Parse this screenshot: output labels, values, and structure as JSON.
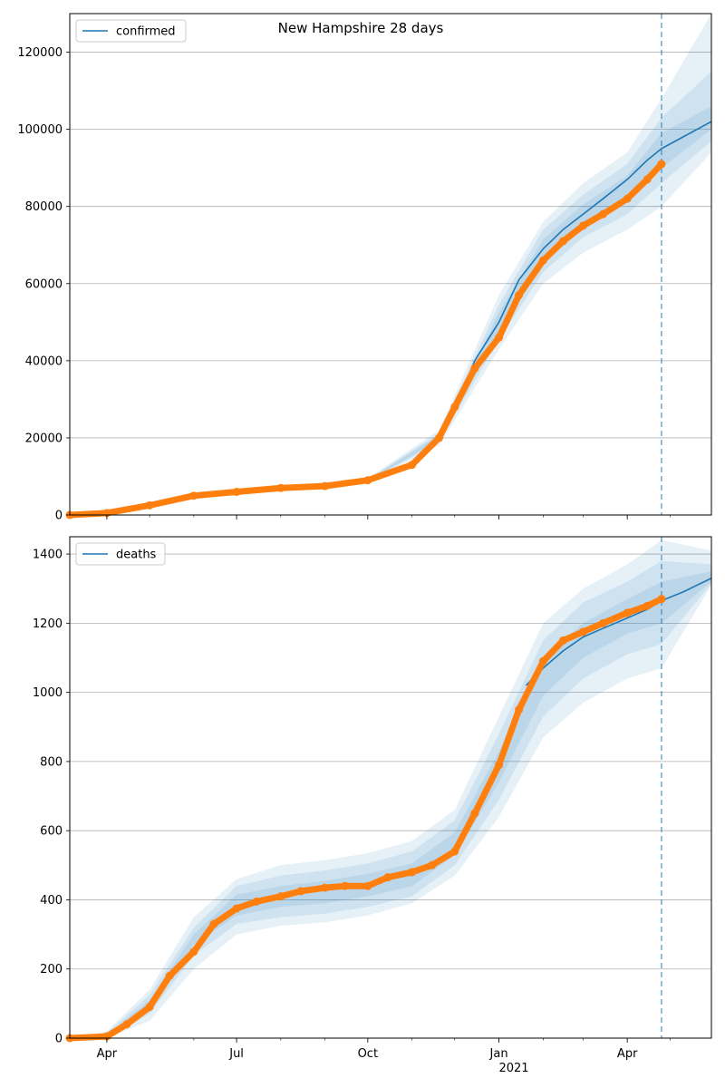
{
  "figure": {
    "title": "New Hampshire 28 days"
  },
  "colors": {
    "model": "#1f77b4",
    "observed": "#ff7f0e",
    "band": "#1f77b4",
    "grid": "#b0b0b0",
    "forecast_line": "#1f77b4"
  },
  "chart_data": [
    {
      "type": "line",
      "legend": "confirmed",
      "legend_position": "top-left",
      "grid": "y",
      "x_range": [
        "2020-03-06",
        "2021-05-30"
      ],
      "ylim": [
        0,
        130000
      ],
      "yticks": [
        0,
        20000,
        40000,
        60000,
        80000,
        100000,
        120000
      ],
      "ytick_labels": [
        "0",
        "20000",
        "40000",
        "60000",
        "80000",
        "100000",
        "120000"
      ],
      "forecast_start": "2021-04-25",
      "series": [
        {
          "name": "confirmed",
          "role": "model",
          "x": [
            "2020-03-06",
            "2020-04-01",
            "2020-05-01",
            "2020-06-01",
            "2020-07-01",
            "2020-08-01",
            "2020-09-01",
            "2020-10-01",
            "2020-11-01",
            "2020-11-20",
            "2020-12-01",
            "2020-12-15",
            "2021-01-01",
            "2021-01-15",
            "2021-02-01",
            "2021-02-15",
            "2021-03-01",
            "2021-03-15",
            "2021-04-01",
            "2021-04-15",
            "2021-04-25",
            "2021-05-10",
            "2021-05-30"
          ],
          "y": [
            0,
            500,
            2500,
            5000,
            6000,
            7000,
            7500,
            9000,
            13000,
            20000,
            27000,
            40000,
            50000,
            61000,
            69000,
            74000,
            78000,
            82000,
            87000,
            92000,
            95000,
            98000,
            102000
          ]
        },
        {
          "name": "observed confirmed",
          "role": "observed",
          "x": [
            "2020-03-06",
            "2020-04-01",
            "2020-05-01",
            "2020-06-01",
            "2020-07-01",
            "2020-08-01",
            "2020-09-01",
            "2020-10-01",
            "2020-11-01",
            "2020-11-20",
            "2020-12-01",
            "2020-12-15",
            "2021-01-01",
            "2021-01-15",
            "2021-02-01",
            "2021-02-15",
            "2021-03-01",
            "2021-03-15",
            "2021-04-01",
            "2021-04-15",
            "2021-04-25"
          ],
          "y": [
            0,
            500,
            2500,
            5000,
            6000,
            7000,
            7500,
            9000,
            13000,
            20000,
            28000,
            38000,
            46000,
            57000,
            66000,
            71000,
            75000,
            78000,
            82000,
            87000,
            91000
          ]
        }
      ],
      "bands": [
        {
          "level": "outer",
          "x": [
            "2020-03-06",
            "2020-07-01",
            "2020-10-01",
            "2020-11-20",
            "2021-01-01",
            "2021-02-01",
            "2021-03-01",
            "2021-04-01",
            "2021-04-25",
            "2021-05-30"
          ],
          "lower": [
            0,
            5500,
            8500,
            18000,
            43000,
            60000,
            68000,
            74000,
            80000,
            94000
          ],
          "upper": [
            0,
            6500,
            9500,
            22000,
            57000,
            76000,
            86000,
            94000,
            108000,
            130000
          ]
        },
        {
          "level": "middle",
          "x": [
            "2020-03-06",
            "2020-07-01",
            "2020-10-01",
            "2020-11-20",
            "2021-01-01",
            "2021-02-01",
            "2021-03-01",
            "2021-04-01",
            "2021-04-25",
            "2021-05-30"
          ],
          "lower": [
            0,
            5700,
            8700,
            18800,
            45500,
            63000,
            72000,
            78000,
            86000,
            97000
          ],
          "upper": [
            0,
            6300,
            9300,
            21200,
            54500,
            74000,
            83000,
            91000,
            103000,
            115000
          ]
        },
        {
          "level": "inner",
          "x": [
            "2020-03-06",
            "2020-07-01",
            "2020-10-01",
            "2020-11-20",
            "2021-01-01",
            "2021-02-01",
            "2021-03-01",
            "2021-04-01",
            "2021-04-25",
            "2021-05-30"
          ],
          "lower": [
            0,
            5850,
            8850,
            19400,
            47500,
            65500,
            74500,
            82000,
            90000,
            100000
          ],
          "upper": [
            0,
            6150,
            9150,
            20600,
            52500,
            71500,
            80500,
            88000,
            99000,
            106000
          ]
        }
      ],
      "x_ticks": [
        {
          "date": "2020-04-01",
          "label": "Apr"
        },
        {
          "date": "2020-07-01",
          "label": "Jul"
        },
        {
          "date": "2020-10-01",
          "label": "Oct"
        },
        {
          "date": "2021-01-01",
          "label": "Jan"
        },
        {
          "date": "2021-04-01",
          "label": "Apr"
        }
      ]
    },
    {
      "type": "line",
      "legend": "deaths",
      "legend_position": "top-left",
      "grid": "y",
      "x_range": [
        "2020-03-06",
        "2021-05-30"
      ],
      "ylim": [
        0,
        1450
      ],
      "yticks": [
        0,
        200,
        400,
        600,
        800,
        1000,
        1200,
        1400
      ],
      "ytick_labels": [
        "0",
        "200",
        "400",
        "600",
        "800",
        "1000",
        "1200",
        "1400"
      ],
      "forecast_start": "2021-04-25",
      "year_label": "2021",
      "series": [
        {
          "name": "deaths",
          "role": "model",
          "x": [
            "2021-01-20",
            "2021-02-01",
            "2021-02-15",
            "2021-03-01",
            "2021-03-15",
            "2021-04-01",
            "2021-04-15",
            "2021-04-25",
            "2021-05-10",
            "2021-05-30"
          ],
          "y": [
            1020,
            1070,
            1120,
            1160,
            1185,
            1215,
            1240,
            1265,
            1290,
            1330
          ]
        },
        {
          "name": "observed deaths",
          "role": "observed",
          "x": [
            "2020-03-06",
            "2020-04-01",
            "2020-04-15",
            "2020-05-01",
            "2020-05-15",
            "2020-06-01",
            "2020-06-15",
            "2020-07-01",
            "2020-07-15",
            "2020-08-01",
            "2020-08-15",
            "2020-09-01",
            "2020-09-15",
            "2020-10-01",
            "2020-10-15",
            "2020-11-01",
            "2020-11-15",
            "2020-12-01",
            "2020-12-15",
            "2021-01-01",
            "2021-01-15",
            "2021-02-01",
            "2021-02-15",
            "2021-03-01",
            "2021-03-15",
            "2021-04-01",
            "2021-04-15",
            "2021-04-25"
          ],
          "y": [
            0,
            5,
            40,
            90,
            180,
            250,
            330,
            375,
            395,
            410,
            425,
            435,
            440,
            440,
            465,
            480,
            500,
            540,
            650,
            790,
            950,
            1090,
            1150,
            1175,
            1200,
            1230,
            1250,
            1270
          ]
        }
      ],
      "bands": [
        {
          "level": "outer",
          "x": [
            "2020-03-06",
            "2020-04-01",
            "2020-05-01",
            "2020-06-01",
            "2020-07-01",
            "2020-08-01",
            "2020-09-01",
            "2020-10-01",
            "2020-11-01",
            "2020-12-01",
            "2021-01-01",
            "2021-02-01",
            "2021-03-01",
            "2021-04-01",
            "2021-04-25",
            "2021-05-30"
          ],
          "lower": [
            0,
            0,
            50,
            200,
            300,
            325,
            335,
            355,
            390,
            470,
            640,
            870,
            970,
            1040,
            1070,
            1310
          ],
          "upper": [
            0,
            20,
            140,
            350,
            460,
            500,
            515,
            535,
            570,
            660,
            930,
            1200,
            1300,
            1370,
            1440,
            1410
          ]
        },
        {
          "level": "middle",
          "x": [
            "2020-03-06",
            "2020-04-01",
            "2020-05-01",
            "2020-06-01",
            "2020-07-01",
            "2020-08-01",
            "2020-09-01",
            "2020-10-01",
            "2020-11-01",
            "2020-12-01",
            "2021-01-01",
            "2021-02-01",
            "2021-03-01",
            "2021-04-01",
            "2021-04-25",
            "2021-05-30"
          ],
          "lower": [
            0,
            0,
            70,
            240,
            330,
            350,
            360,
            380,
            410,
            500,
            690,
            930,
            1040,
            1110,
            1140,
            1315
          ],
          "upper": [
            0,
            15,
            125,
            320,
            440,
            470,
            485,
            505,
            540,
            630,
            880,
            1150,
            1260,
            1320,
            1380,
            1370
          ]
        },
        {
          "level": "inner",
          "x": [
            "2020-03-06",
            "2020-04-01",
            "2020-05-01",
            "2020-06-01",
            "2020-07-01",
            "2020-08-01",
            "2020-09-01",
            "2020-10-01",
            "2020-11-01",
            "2020-12-01",
            "2021-01-01",
            "2021-02-01",
            "2021-03-01",
            "2021-04-01",
            "2021-04-25",
            "2021-05-30"
          ],
          "lower": [
            0,
            2,
            85,
            270,
            355,
            380,
            390,
            410,
            440,
            530,
            740,
            990,
            1100,
            1170,
            1200,
            1320
          ],
          "upper": [
            0,
            10,
            110,
            300,
            415,
            440,
            455,
            475,
            505,
            595,
            830,
            1100,
            1200,
            1270,
            1320,
            1350
          ]
        }
      ],
      "x_ticks": [
        {
          "date": "2020-04-01",
          "label": "Apr"
        },
        {
          "date": "2020-07-01",
          "label": "Jul"
        },
        {
          "date": "2020-10-01",
          "label": "Oct"
        },
        {
          "date": "2021-01-01",
          "label": "Jan"
        },
        {
          "date": "2021-04-01",
          "label": "Apr"
        }
      ]
    }
  ]
}
